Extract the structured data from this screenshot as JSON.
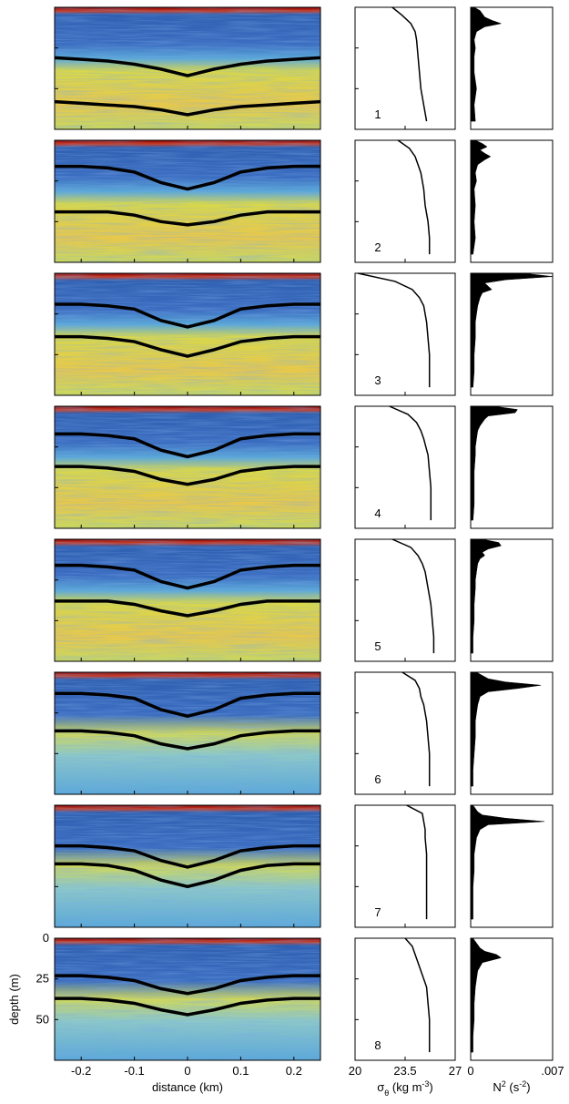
{
  "chart_data": [
    {
      "type": "echogram",
      "xlabel": "distance (km)",
      "ylabel": "depth (m)",
      "xlim": [
        -0.25,
        0.25
      ],
      "xticks": [
        -0.2,
        -0.1,
        0,
        0.1,
        0.2
      ],
      "ylim": [
        0,
        75
      ],
      "yticks": [
        0,
        25,
        50
      ],
      "color": "#000000",
      "x": [
        -0.25,
        -0.2,
        -0.15,
        -0.1,
        -0.05,
        0,
        0.05,
        0.1,
        0.15,
        0.2,
        0.25
      ],
      "lines": [
        [
          [
            31,
            32,
            33,
            35,
            38,
            42,
            38,
            35,
            33,
            32,
            31
          ],
          [
            58,
            59,
            60,
            61,
            63,
            66,
            63,
            61,
            60,
            59,
            58
          ]
        ],
        [
          [
            16,
            16,
            17,
            19.5,
            26,
            30,
            26,
            19.5,
            17,
            16,
            16
          ],
          [
            44,
            44,
            44,
            46,
            50,
            52,
            50,
            46,
            44,
            44,
            44
          ]
        ],
        [
          [
            19,
            19,
            20,
            22,
            29,
            33,
            29,
            22,
            20,
            19,
            19
          ],
          [
            39,
            39,
            40,
            42,
            47,
            51,
            47,
            42,
            40,
            39,
            39
          ]
        ],
        [
          [
            17,
            17,
            18,
            20,
            27,
            31,
            27,
            20,
            18,
            17,
            17
          ],
          [
            37,
            37,
            38,
            40,
            45,
            48,
            45,
            40,
            38,
            37,
            37
          ]
        ],
        [
          [
            16,
            16,
            17,
            19,
            26,
            30,
            26,
            19,
            17,
            16,
            16
          ],
          [
            38,
            38,
            38,
            40,
            44,
            47,
            44,
            40,
            38,
            38,
            38
          ]
        ],
        [
          [
            13,
            13,
            14,
            16,
            23,
            27,
            23,
            16,
            14,
            13,
            13
          ],
          [
            36,
            36,
            37,
            39,
            44,
            47,
            44,
            39,
            37,
            36,
            36
          ]
        ],
        [
          [
            25,
            25,
            26,
            28,
            34,
            38,
            34,
            28,
            26,
            25,
            25
          ],
          [
            36,
            36,
            37,
            40,
            46,
            50,
            46,
            40,
            37,
            36,
            36
          ]
        ],
        [
          [
            23,
            23,
            24,
            26,
            31,
            34,
            31,
            26,
            24,
            23,
            23
          ],
          [
            37,
            37,
            38,
            40,
            44,
            47,
            44,
            40,
            38,
            37,
            37
          ]
        ]
      ]
    },
    {
      "type": "line",
      "xlabel": [
        "σ",
        "θ",
        " (kg m",
        "-3",
        ")"
      ],
      "xlim": [
        20,
        27
      ],
      "xticks": [
        20,
        23.5,
        27
      ],
      "ylim": [
        0,
        75
      ],
      "yticks": [
        0,
        25,
        50
      ],
      "color": "#000000",
      "panel_labels": [
        "1",
        "2",
        "3",
        "4",
        "5",
        "6",
        "7",
        "8"
      ],
      "depth": [
        0,
        5,
        10,
        15,
        20,
        30,
        40,
        50,
        60,
        70
      ],
      "panels": [
        [
          22.6,
          23.3,
          23.9,
          24.2,
          24.3,
          24.4,
          24.5,
          24.6,
          24.8,
          25.0
        ],
        [
          23.0,
          23.8,
          24.2,
          24.4,
          24.6,
          24.8,
          24.9,
          25.1,
          25.2,
          25.2
        ],
        [
          20.2,
          22.8,
          24.0,
          24.5,
          24.8,
          25.0,
          25.1,
          25.2,
          25.2,
          25.2
        ],
        [
          22.4,
          23.7,
          24.3,
          24.6,
          24.8,
          25.1,
          25.2,
          25.3,
          25.3,
          25.3
        ],
        [
          22.6,
          23.9,
          24.4,
          24.7,
          24.9,
          25.1,
          25.3,
          25.4,
          25.5,
          25.5
        ],
        [
          23.3,
          24.2,
          24.5,
          24.6,
          24.8,
          25.0,
          25.1,
          25.2,
          25.2,
          25.2
        ],
        [
          23.6,
          24.7,
          24.8,
          24.9,
          24.9,
          25.0,
          25.0,
          25.0,
          25.0,
          25.0
        ],
        [
          23.5,
          24.0,
          24.2,
          24.4,
          24.6,
          25.0,
          25.1,
          25.2,
          25.2,
          25.2
        ]
      ]
    },
    {
      "type": "area",
      "xlabel": [
        "N",
        "2",
        " (s",
        "-2",
        ")"
      ],
      "xlim": [
        0,
        0.007
      ],
      "xticks": [
        0,
        {
          "value": 0.007,
          "label": ".007"
        }
      ],
      "ylim": [
        0,
        75
      ],
      "color": "#000000",
      "depth": [
        0,
        2,
        4,
        6,
        8,
        10,
        12,
        15,
        20,
        25,
        30,
        40,
        50,
        60,
        70
      ],
      "panels": [
        [
          0.0003,
          0.0008,
          0.001,
          0.0012,
          0.0018,
          0.0026,
          0.0012,
          0.0005,
          0.0003,
          0.0004,
          0.0003,
          0.0003,
          0.0005,
          0.0003,
          0.0004
        ],
        [
          0.0004,
          0.001,
          0.0014,
          0.0008,
          0.0012,
          0.0017,
          0.0012,
          0.0006,
          0.0004,
          0.0005,
          0.0003,
          0.0004,
          0.0003,
          0.0004,
          0.0002
        ],
        [
          0.0045,
          0.007,
          0.003,
          0.0012,
          0.0015,
          0.0018,
          0.001,
          0.0008,
          0.0006,
          0.0005,
          0.0004,
          0.0004,
          0.0003,
          0.0003,
          0.0002
        ],
        [
          0.002,
          0.004,
          0.0038,
          0.0015,
          0.0012,
          0.001,
          0.0008,
          0.0006,
          0.0005,
          0.0004,
          0.0004,
          0.0003,
          0.0003,
          0.0003,
          0.0002
        ],
        [
          0.001,
          0.0024,
          0.0026,
          0.0015,
          0.001,
          0.0012,
          0.0008,
          0.0006,
          0.0005,
          0.0004,
          0.0004,
          0.0003,
          0.0003,
          0.0002,
          0.0002
        ],
        [
          0.0005,
          0.001,
          0.0015,
          0.003,
          0.006,
          0.004,
          0.0015,
          0.0008,
          0.0006,
          0.0005,
          0.0004,
          0.0004,
          0.0003,
          0.0002,
          0.0002
        ],
        [
          0.0002,
          0.0004,
          0.0006,
          0.001,
          0.003,
          0.0063,
          0.0015,
          0.0008,
          0.0005,
          0.0004,
          0.0003,
          0.0003,
          0.0002,
          0.0002,
          0.0002
        ],
        [
          0.0002,
          0.0004,
          0.0006,
          0.0008,
          0.0012,
          0.0022,
          0.0026,
          0.001,
          0.0006,
          0.0005,
          0.0004,
          0.0003,
          0.0003,
          0.0002,
          0.0002
        ]
      ]
    }
  ]
}
